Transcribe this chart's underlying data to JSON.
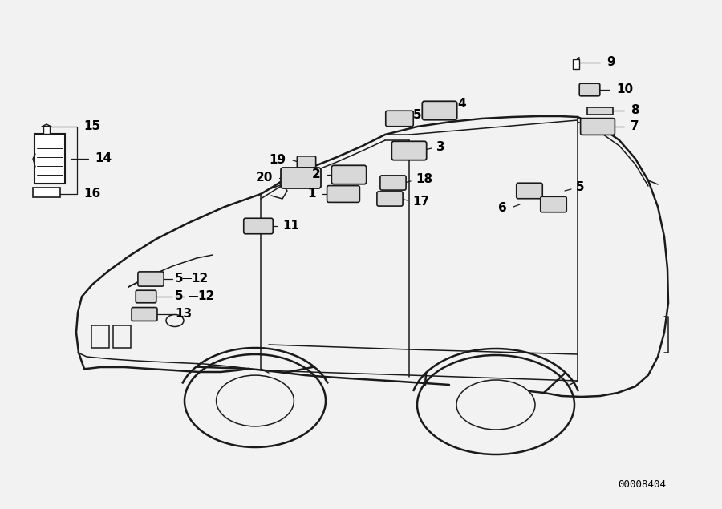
{
  "bg_color": "#f2f2f2",
  "line_color": "#1a1a1a",
  "diagram_id": "00008404",
  "lw_main": 1.8,
  "lw_thin": 1.1,
  "lw_label": 0.9,
  "label_fontsize": 11,
  "component_fill": "#d8d8d8",
  "white": "#ffffff"
}
